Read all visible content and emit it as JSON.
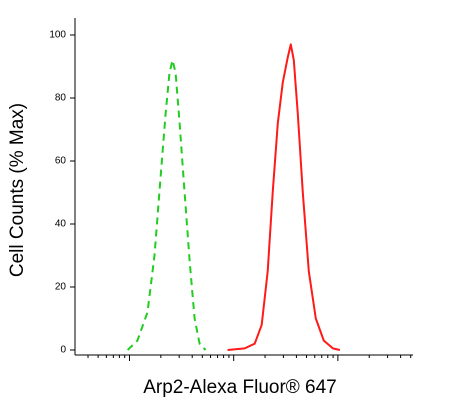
{
  "chart_data": {
    "type": "line",
    "xlabel": "Arp2-Alexa Fluor® 647",
    "ylabel": "Cell Counts (% Max)",
    "xscale": "log",
    "xlim": [
      30,
      52600
    ],
    "xticks": [
      100,
      1000,
      10000
    ],
    "ylim": [
      0,
      100
    ],
    "yticks": [
      0,
      20,
      40,
      60,
      80,
      100
    ],
    "series": [
      {
        "color": "#22cc22",
        "dashed": true,
        "x": [
          96,
          119,
          149,
          174,
          199,
          222,
          242,
          259,
          277,
          303,
          338,
          378,
          422,
          471,
          538
        ],
        "values": [
          0,
          3,
          12,
          30,
          55,
          75,
          88,
          92,
          88,
          72,
          50,
          28,
          10,
          2,
          0
        ]
      },
      {
        "color": "#ff1a1a",
        "dashed": false,
        "x": [
          875,
          1276,
          1592,
          1859,
          2123,
          2371,
          2649,
          2958,
          3304,
          3532,
          3776,
          4121,
          4603,
          5260,
          6138,
          7332,
          8954,
          10450
        ],
        "values": [
          0,
          0.5,
          2,
          8,
          25,
          50,
          72,
          85,
          93,
          97,
          92,
          75,
          50,
          25,
          10,
          3,
          0.5,
          0
        ]
      }
    ]
  }
}
